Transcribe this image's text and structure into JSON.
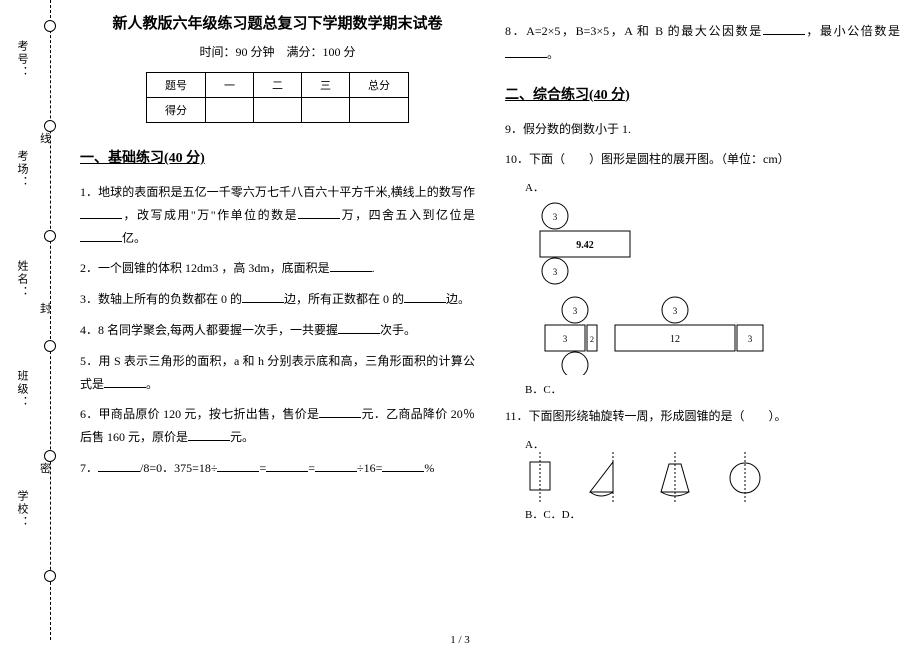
{
  "binding": {
    "labels": [
      "考号：",
      "考场：",
      "姓名：",
      "班级：",
      "学校："
    ],
    "seals": [
      "线",
      "封",
      "密"
    ]
  },
  "title": "新人教版六年级练习题总复习下学期数学期末试卷",
  "subtitle_time": "时间：90 分钟",
  "subtitle_score": "满分：100 分",
  "score_table": {
    "headers": [
      "题号",
      "一",
      "二",
      "三",
      "总分"
    ],
    "row": "得分"
  },
  "section1_title": "一、基础练习(40 分)",
  "q1": "1．地球的表面积是五亿一千零六万七千八百六十平方千米,横线上的数写作______，改写成用\"万\"作单位的数是______万，四舍五入到亿位是______亿。",
  "q2": "2．一个圆锥的体积 12dm3 ，高 3dm，底面积是______.",
  "q3": "3．数轴上所有的负数都在 0 的______边，所有正数都在 0 的______边。",
  "q4": "4．8 名同学聚会,每两人都要握一次手，一共要握______次手。",
  "q5": "5．用 S 表示三角形的面积，a 和 h 分别表示底和高，三角形面积的计算公式是______。",
  "q6": "6．甲商品原价 120 元，按七折出售，售价是______元．乙商品降价 20％后售 160 元，原价是______元。",
  "q7": "7．______/8=0．375=18÷______=______=______÷16=______%",
  "q8": "8．A=2×5，B=3×5，A 和 B 的最大公因数是______，最小公倍数是______。",
  "section2_title": "二、综合练习(40 分)",
  "q9": "9．假分数的倒数小于 1.",
  "q10": "10．下面（　　）图形是圆柱的展开图。（单位：cm）",
  "q11": "11．下面图形绕轴旋转一周，形成圆锥的是（　　）。",
  "fig": {
    "circle_label": "3",
    "rectA_label": "9.42",
    "rectB_label": "12",
    "rectB_side": "2",
    "optA": "A．",
    "optBC": "B．C．",
    "optBCD": "B．C．D．"
  },
  "footer": "1 / 3"
}
